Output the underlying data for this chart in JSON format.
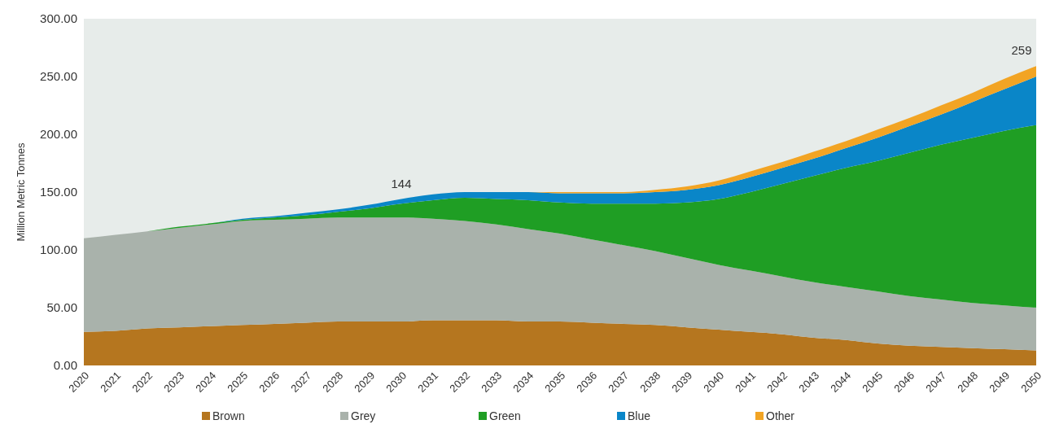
{
  "chart_data": {
    "type": "area",
    "stacked": true,
    "ylabel": "Million Metric Tonnes",
    "categories": [
      "2020",
      "2021",
      "2022",
      "2023",
      "2024",
      "2025",
      "2026",
      "2027",
      "2028",
      "2029",
      "2030",
      "2031",
      "2032",
      "2033",
      "2034",
      "2035",
      "2036",
      "2037",
      "2038",
      "2039",
      "2040",
      "2041",
      "2042",
      "2043",
      "2044",
      "2045",
      "2046",
      "2047",
      "2048",
      "2049",
      "2050"
    ],
    "series": [
      {
        "name": "Brown",
        "color": "#b5761f",
        "values": [
          29,
          30,
          32,
          33,
          34,
          35,
          36,
          37,
          38,
          38,
          38,
          39,
          39,
          39,
          38,
          38,
          37,
          36,
          35,
          33,
          31,
          29,
          27,
          24,
          22,
          19,
          17,
          16,
          15,
          14,
          13
        ]
      },
      {
        "name": "Grey",
        "color": "#a9b2ab",
        "values": [
          81,
          83,
          84,
          86,
          88,
          90,
          90,
          90,
          90,
          90,
          90,
          88,
          86,
          83,
          80,
          76,
          72,
          68,
          64,
          60,
          56,
          53,
          50,
          48,
          46,
          45,
          43,
          41,
          39,
          38,
          37
        ]
      },
      {
        "name": "Green",
        "color": "#1f9e24",
        "values": [
          0,
          0,
          0,
          1,
          1,
          1,
          2,
          3,
          5,
          8,
          12,
          16,
          20,
          22,
          25,
          27,
          31,
          36,
          41,
          48,
          57,
          68,
          80,
          92,
          103,
          113,
          124,
          134,
          143,
          151,
          158
        ]
      },
      {
        "name": "Blue",
        "color": "#0a86c8",
        "values": [
          0,
          0,
          0,
          0,
          0,
          1,
          1,
          2,
          2,
          3,
          4,
          5,
          5,
          6,
          7,
          8,
          9,
          9,
          10,
          11,
          12,
          13,
          14,
          15,
          17,
          20,
          23,
          26,
          31,
          36,
          42
        ]
      },
      {
        "name": "Other",
        "color": "#f2a424",
        "values": [
          0,
          0,
          0,
          0,
          0,
          0,
          0,
          0,
          0,
          0,
          0,
          0,
          0,
          0,
          0,
          1,
          1,
          1,
          2,
          3,
          4,
          5,
          5,
          6,
          6,
          7,
          7,
          8,
          8,
          9,
          9
        ]
      }
    ],
    "ylim": [
      0,
      300
    ],
    "yticks": [
      {
        "value": 0,
        "label": "0.00"
      },
      {
        "value": 50,
        "label": "50.00"
      },
      {
        "value": 100,
        "label": "100.00"
      },
      {
        "value": 150,
        "label": "150.00"
      },
      {
        "value": 200,
        "label": "200.00"
      },
      {
        "value": 250,
        "label": "250.00"
      },
      {
        "value": 300,
        "label": "300.00"
      }
    ],
    "annotations": [
      {
        "text": "144",
        "x": "2030",
        "y": 144
      },
      {
        "text": "259",
        "x": "2050",
        "y": 259
      }
    ],
    "legend": "bottom"
  }
}
